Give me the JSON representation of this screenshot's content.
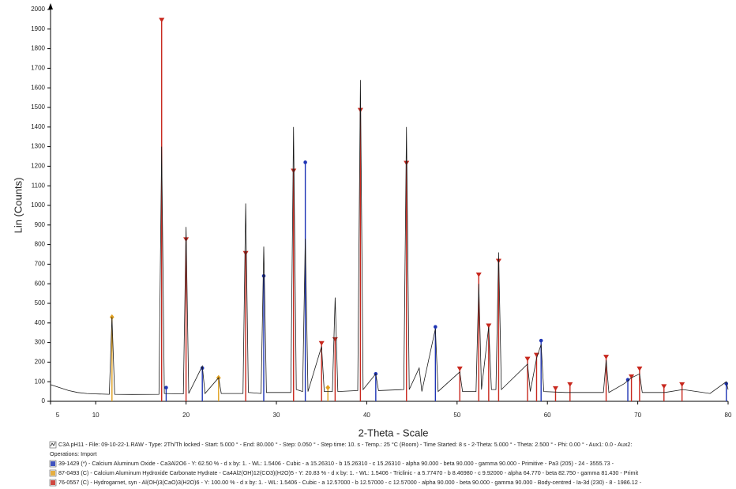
{
  "chart_data": {
    "type": "xrd",
    "y_label": "Lin (Counts)",
    "x_label": "2-Theta - Scale",
    "xlim": [
      5,
      80
    ],
    "xticks": [
      5,
      10,
      20,
      30,
      40,
      50,
      60,
      70,
      80
    ],
    "ylim": [
      0,
      2000
    ],
    "yticks": [
      0,
      100,
      200,
      300,
      400,
      500,
      600,
      700,
      800,
      900,
      1000,
      1100,
      1200,
      1300,
      1400,
      1500,
      1600,
      1700,
      1800,
      1900,
      2000
    ],
    "legend_note": "Operations: Import",
    "series": [
      {
        "name": "C3A pH11 - File: 09-10-22-1.RAW - Type: 2Th/Th locked - Start: 5.000 ° - End: 80.000 ° - Step: 0.050 ° - Step time: 10. s - Temp.: 25 °C (Room) - Time Started: 8 s - 2-Theta: 5.000 ° - Theta: 2.500 ° - Phi: 0.00 ° - Aux1: 0.0 - Aux2:",
        "style": "line",
        "color": "#1a1a1a",
        "x": [
          5,
          6,
          7,
          8,
          9,
          10,
          11.5,
          11.8,
          12.1,
          14,
          17.0,
          17.3,
          17.6,
          19.7,
          20.0,
          20.3,
          21.8,
          22.1,
          23.6,
          23.9,
          26.3,
          26.6,
          26.9,
          28.3,
          28.6,
          28.9,
          31.6,
          31.9,
          32.2,
          32.9,
          33.2,
          33.5,
          35.0,
          35.3,
          36.2,
          36.5,
          36.8,
          39.0,
          39.3,
          39.6,
          41.0,
          41.3,
          44.1,
          44.4,
          44.7,
          45.8,
          46.1,
          47.6,
          47.9,
          50.3,
          50.6,
          52.1,
          52.4,
          52.7,
          53.5,
          53.8,
          54.3,
          54.6,
          54.9,
          57.8,
          58.1,
          58.8,
          59.3,
          59.6,
          62,
          66.2,
          66.5,
          66.8,
          68.5,
          69.3,
          70.2,
          70.5,
          73,
          75,
          78,
          79.8,
          80
        ],
        "values": [
          85,
          70,
          55,
          45,
          40,
          38,
          36,
          430,
          36,
          35,
          36,
          1300,
          40,
          38,
          890,
          40,
          180,
          40,
          120,
          40,
          40,
          1010,
          45,
          40,
          790,
          45,
          45,
          1400,
          60,
          50,
          830,
          50,
          280,
          50,
          50,
          530,
          50,
          55,
          1640,
          60,
          140,
          55,
          60,
          1400,
          60,
          170,
          50,
          370,
          50,
          150,
          50,
          50,
          600,
          60,
          380,
          60,
          60,
          760,
          60,
          190,
          50,
          220,
          290,
          50,
          45,
          45,
          210,
          45,
          90,
          120,
          140,
          45,
          45,
          60,
          40,
          100,
          60
        ]
      },
      {
        "name": "39-1429 (*) - Calcium Aluminum Oxide - Ca3Al2O6 - Y: 62.50 % - d x by: 1. - WL: 1.5406 - Cubic - a 15.26310 - b 15.26310 - c 15.26310 - alpha 90.000 - beta 90.000 - gamma 90.000 - Primitive - Pa3 (205) - 24 - 3555.73 -",
        "style": "stick",
        "marker": "circle",
        "color": "#1f35b5",
        "x": [
          17.8,
          21.8,
          28.6,
          33.2,
          41.0,
          47.6,
          59.3,
          68.9,
          79.8
        ],
        "values": [
          70,
          170,
          640,
          1220,
          140,
          380,
          310,
          110,
          90
        ]
      },
      {
        "name": "87-0493 (C) - Calcium Aluminum Hydroxide Carbonate Hydrate - Ca4Al2(OH)12(CO3)(H2O)5 - Y: 20.83 % - d x by: 1. - WL: 1.5406 - Triclinic - a 5.77470 - b 8.46980 - c 9.92000 - alpha 64.770 - beta 82.750 - gamma 81.430 - Primit",
        "style": "stick",
        "marker": "diamond",
        "color": "#e0a020",
        "x": [
          11.8,
          23.6,
          35.7
        ],
        "values": [
          430,
          120,
          70
        ]
      },
      {
        "name": "76-0557 (C) - Hydrogarnet, syn - Al(OH)3(CaO)3(H2O)6 - Y: 100.00 % - d x by: 1. - WL: 1.5406 - Cubic - a 12.57000 - b 12.57000 - c 12.57000 - alpha 90.000 - beta 90.000 - gamma 90.000 - Body-centred - Ia-3d (230) - 8 - 1986.12 -",
        "style": "stick",
        "marker": "triangle",
        "color": "#c8281e",
        "x": [
          17.3,
          20.0,
          26.6,
          31.9,
          35.0,
          36.5,
          39.3,
          44.4,
          50.3,
          52.4,
          53.5,
          54.6,
          57.8,
          58.8,
          60.9,
          62.5,
          66.5,
          69.3,
          70.2,
          72.9,
          74.9
        ],
        "values": [
          1940,
          820,
          750,
          1170,
          290,
          310,
          1480,
          1210,
          160,
          640,
          380,
          710,
          210,
          230,
          60,
          80,
          220,
          120,
          160,
          70,
          80
        ]
      }
    ]
  }
}
